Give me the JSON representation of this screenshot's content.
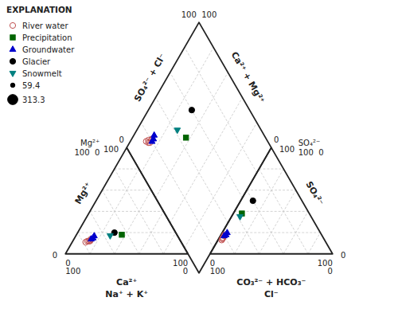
{
  "chart_data": {
    "type": "piper",
    "range": [
      0,
      100
    ],
    "grid": true,
    "grid_lines": [
      20,
      40,
      60,
      80
    ],
    "axes": {
      "ca": {
        "label": "Ca²⁺",
        "ticks": [
          0,
          100
        ]
      },
      "na_k": {
        "label": "Na⁺ + K⁺",
        "ticks": [
          0,
          100
        ]
      },
      "mg": {
        "label": "Mg²⁺",
        "ticks": [
          0,
          100
        ]
      },
      "hco3": {
        "label": "CO₃²⁻ + HCO₃⁻",
        "ticks": [
          0,
          100
        ]
      },
      "cl": {
        "label": "Cl⁻",
        "ticks": [
          0,
          100
        ]
      },
      "so4": {
        "label": "SO₄²⁻",
        "ticks": [
          0,
          100
        ]
      },
      "so4_cl": {
        "label": "SO₄²⁻ + Cl⁻",
        "ticks": [
          0,
          100
        ]
      },
      "ca_mg": {
        "label": "Ca²⁺ + Mg²⁺",
        "ticks": [
          0,
          100
        ]
      }
    },
    "annotations": [
      "Mg²⁺\n100  0",
      "SO₄²⁻\n100  0"
    ],
    "legend": "upper left",
    "legend_title": "EXPLANATION",
    "series": [
      {
        "name": "River water",
        "color": "#c05050",
        "marker": "open-circle",
        "ca": [
          76,
          78,
          73,
          75,
          72,
          74
        ],
        "mg": [
          12,
          11,
          13,
          12,
          14,
          12
        ],
        "na_k": [
          12,
          11,
          14,
          13,
          14,
          14
        ],
        "hco3": [
          82,
          84,
          80,
          83,
          79,
          82
        ],
        "so4": [
          15,
          13,
          17,
          14,
          18,
          15
        ],
        "cl": [
          3,
          3,
          3,
          3,
          3,
          3
        ]
      },
      {
        "name": "Precipitation",
        "color": "#006400",
        "marker": "square",
        "ca": [
          45
        ],
        "mg": [
          18
        ],
        "na_k": [
          37
        ],
        "hco3": [
          55
        ],
        "so4": [
          38
        ],
        "cl": [
          7
        ]
      },
      {
        "name": "Groundwater",
        "color": "#0000cd",
        "marker": "triangle-up",
        "ca": [
          70,
          68,
          72
        ],
        "mg": [
          15,
          17,
          14
        ],
        "na_k": [
          15,
          15,
          14
        ],
        "hco3": [
          78,
          80,
          76
        ],
        "so4": [
          18,
          17,
          20
        ],
        "cl": [
          4,
          3,
          4
        ]
      },
      {
        "name": "Glacier",
        "color": "black",
        "marker": "circle",
        "ca": [
          50
        ],
        "mg": [
          20
        ],
        "na_k": [
          30
        ],
        "hco3": [
          40
        ],
        "so4": [
          50
        ],
        "cl": [
          10
        ]
      },
      {
        "name": "Snowmelt",
        "color": "#008080",
        "marker": "triangle-down",
        "ca": [
          55
        ],
        "mg": [
          17
        ],
        "na_k": [
          28
        ],
        "hco3": [
          58
        ],
        "so4": [
          35
        ],
        "cl": [
          7
        ]
      }
    ],
    "size_legend": {
      "color": "black",
      "values": [
        59.4,
        313.3
      ]
    }
  }
}
